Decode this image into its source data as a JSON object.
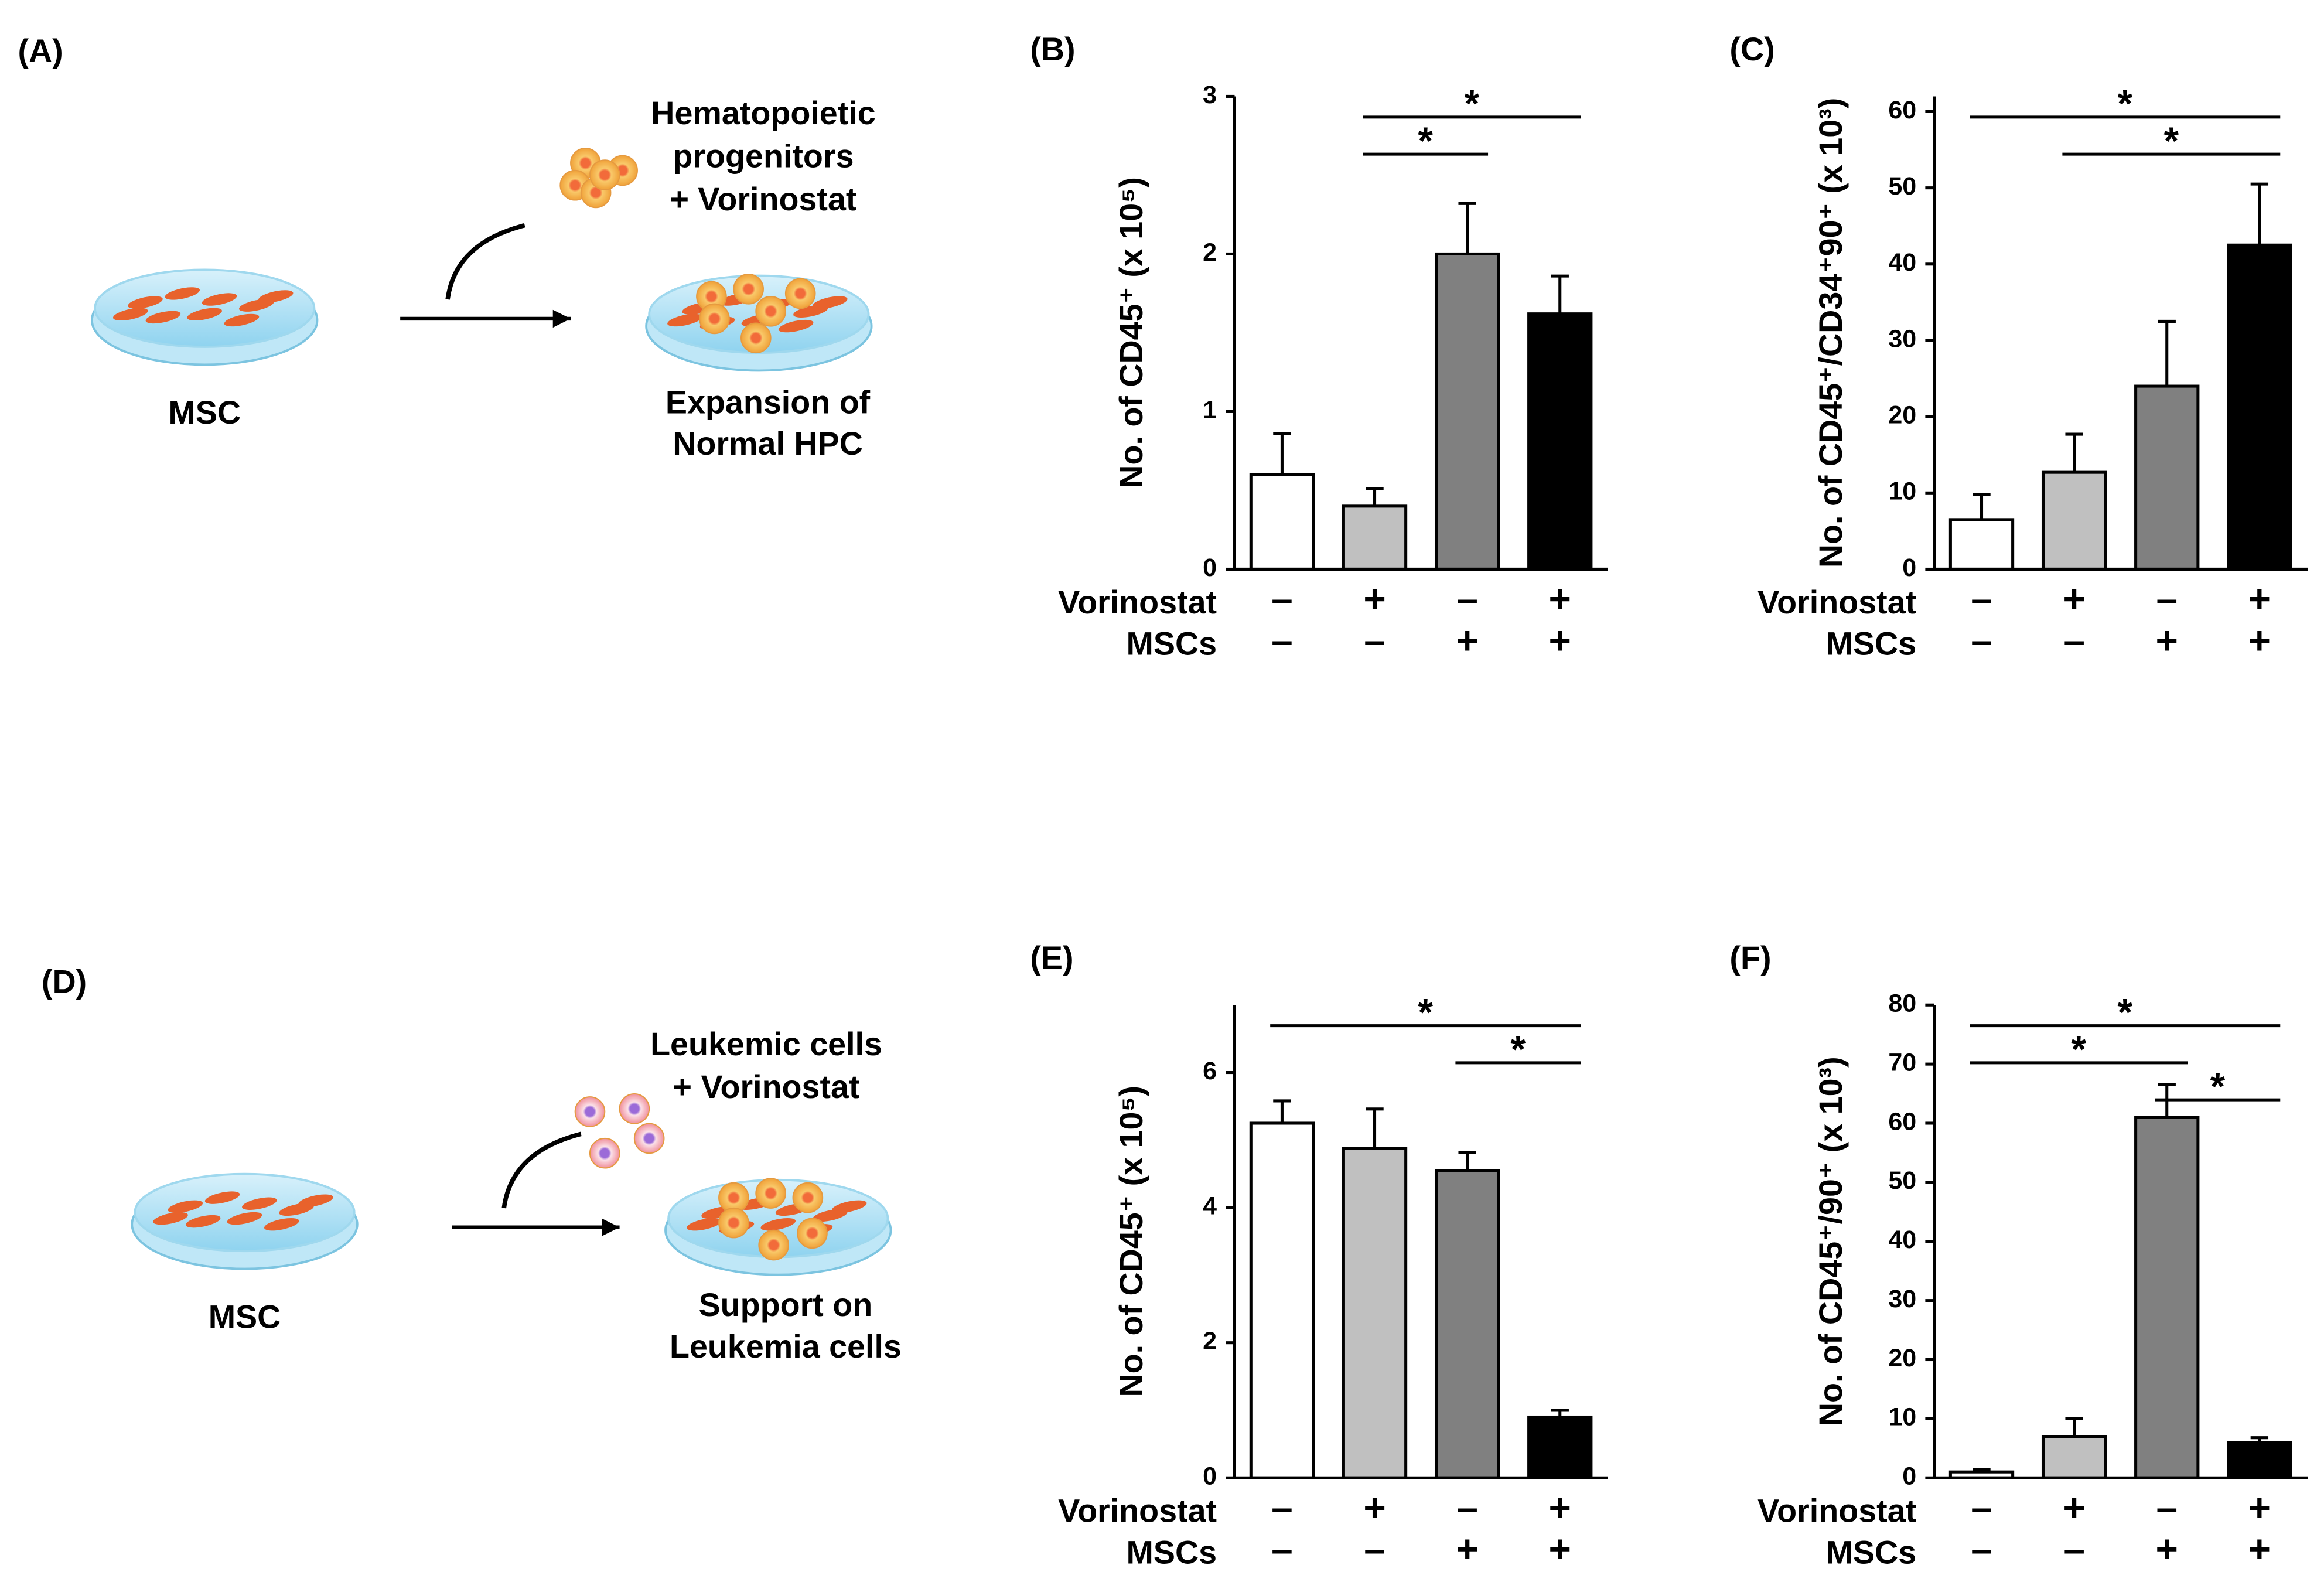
{
  "diagrams": [
    {
      "panel": "(A)",
      "cells_label": [
        "Hematopoietic",
        "progenitors",
        "+ Vorinostat"
      ],
      "left_label": "MSC",
      "result_label": [
        "Expansion of",
        "Normal HPC"
      ]
    },
    {
      "panel": "(D)",
      "cells_label": [
        "Leukemic cells",
        "+ Vorinostat"
      ],
      "left_label": "MSC",
      "result_label": [
        "Support on",
        "Leukemia cells"
      ]
    }
  ],
  "chart_data": [
    {
      "type": "bar",
      "panel": "(B)",
      "y_label": "No. of CD45⁺ (x 10⁵)",
      "conditions": [
        {
          "name": "Vorinostat",
          "signs": [
            "–",
            "+",
            "–",
            "+"
          ]
        },
        {
          "name": "MSCs",
          "signs": [
            "–",
            "–",
            "+",
            "+"
          ]
        }
      ],
      "values": [
        0.6,
        0.4,
        2.0,
        1.62
      ],
      "errors": [
        0.26,
        0.11,
        0.32,
        0.24
      ],
      "colors": [
        "#ffffff",
        "#c0c0c0",
        "#808080",
        "#000000"
      ],
      "ylim": [
        0,
        3
      ],
      "yticks": [
        0,
        1,
        2,
        3
      ],
      "significance": [
        {
          "from": 1,
          "to": 3,
          "label": "*"
        },
        {
          "from": 1,
          "to": 2,
          "label": "*"
        }
      ]
    },
    {
      "type": "bar",
      "panel": "(C)",
      "y_label": "No. of CD45⁺/CD34⁺90⁺ (x 10³)",
      "conditions": [
        {
          "name": "Vorinostat",
          "signs": [
            "–",
            "+",
            "–",
            "+"
          ]
        },
        {
          "name": "MSCs",
          "signs": [
            "–",
            "–",
            "+",
            "+"
          ]
        }
      ],
      "values": [
        6.5,
        12.7,
        24,
        42.5
      ],
      "errors": [
        3.3,
        5,
        8.5,
        8
      ],
      "colors": [
        "#ffffff",
        "#c0c0c0",
        "#808080",
        "#000000"
      ],
      "ylim": [
        0,
        62
      ],
      "yticks": [
        0,
        10,
        20,
        30,
        40,
        50,
        60
      ],
      "significance": [
        {
          "from": 0,
          "to": 3,
          "label": "*"
        },
        {
          "from": 1,
          "to": 3,
          "label": "*"
        }
      ]
    },
    {
      "type": "bar",
      "panel": "(E)",
      "y_label": "No. of CD45⁺ (x 10⁵)",
      "conditions": [
        {
          "name": "Vorinostat",
          "signs": [
            "–",
            "+",
            "–",
            "+"
          ]
        },
        {
          "name": "MSCs",
          "signs": [
            "–",
            "–",
            "+",
            "+"
          ]
        }
      ],
      "values": [
        5.25,
        4.88,
        4.55,
        0.9
      ],
      "errors": [
        0.33,
        0.58,
        0.27,
        0.1
      ],
      "colors": [
        "#ffffff",
        "#c0c0c0",
        "#808080",
        "#000000"
      ],
      "ylim": [
        0,
        7
      ],
      "yticks": [
        0,
        2,
        4,
        6
      ],
      "significance": [
        {
          "from": 0,
          "to": 3,
          "label": "*"
        },
        {
          "from": 2,
          "to": 3,
          "label": "*"
        }
      ]
    },
    {
      "type": "bar",
      "panel": "(F)",
      "y_label": "No. of CD45⁺/90⁺ (x 10³)",
      "conditions": [
        {
          "name": "Vorinostat",
          "signs": [
            "–",
            "+",
            "–",
            "+"
          ]
        },
        {
          "name": "MSCs",
          "signs": [
            "–",
            "–",
            "+",
            "+"
          ]
        }
      ],
      "values": [
        1,
        7,
        61,
        6
      ],
      "errors": [
        0.4,
        3,
        5.5,
        0.8
      ],
      "colors": [
        "#ffffff",
        "#c0c0c0",
        "#808080",
        "#000000"
      ],
      "ylim": [
        0,
        80
      ],
      "yticks": [
        0,
        10,
        20,
        30,
        40,
        50,
        60,
        70,
        80
      ],
      "significance": [
        {
          "from": 0,
          "to": 3,
          "label": "*"
        },
        {
          "from": 0,
          "to": 2,
          "label": "*"
        },
        {
          "from": 2,
          "to": 3,
          "label": "*"
        }
      ]
    }
  ]
}
